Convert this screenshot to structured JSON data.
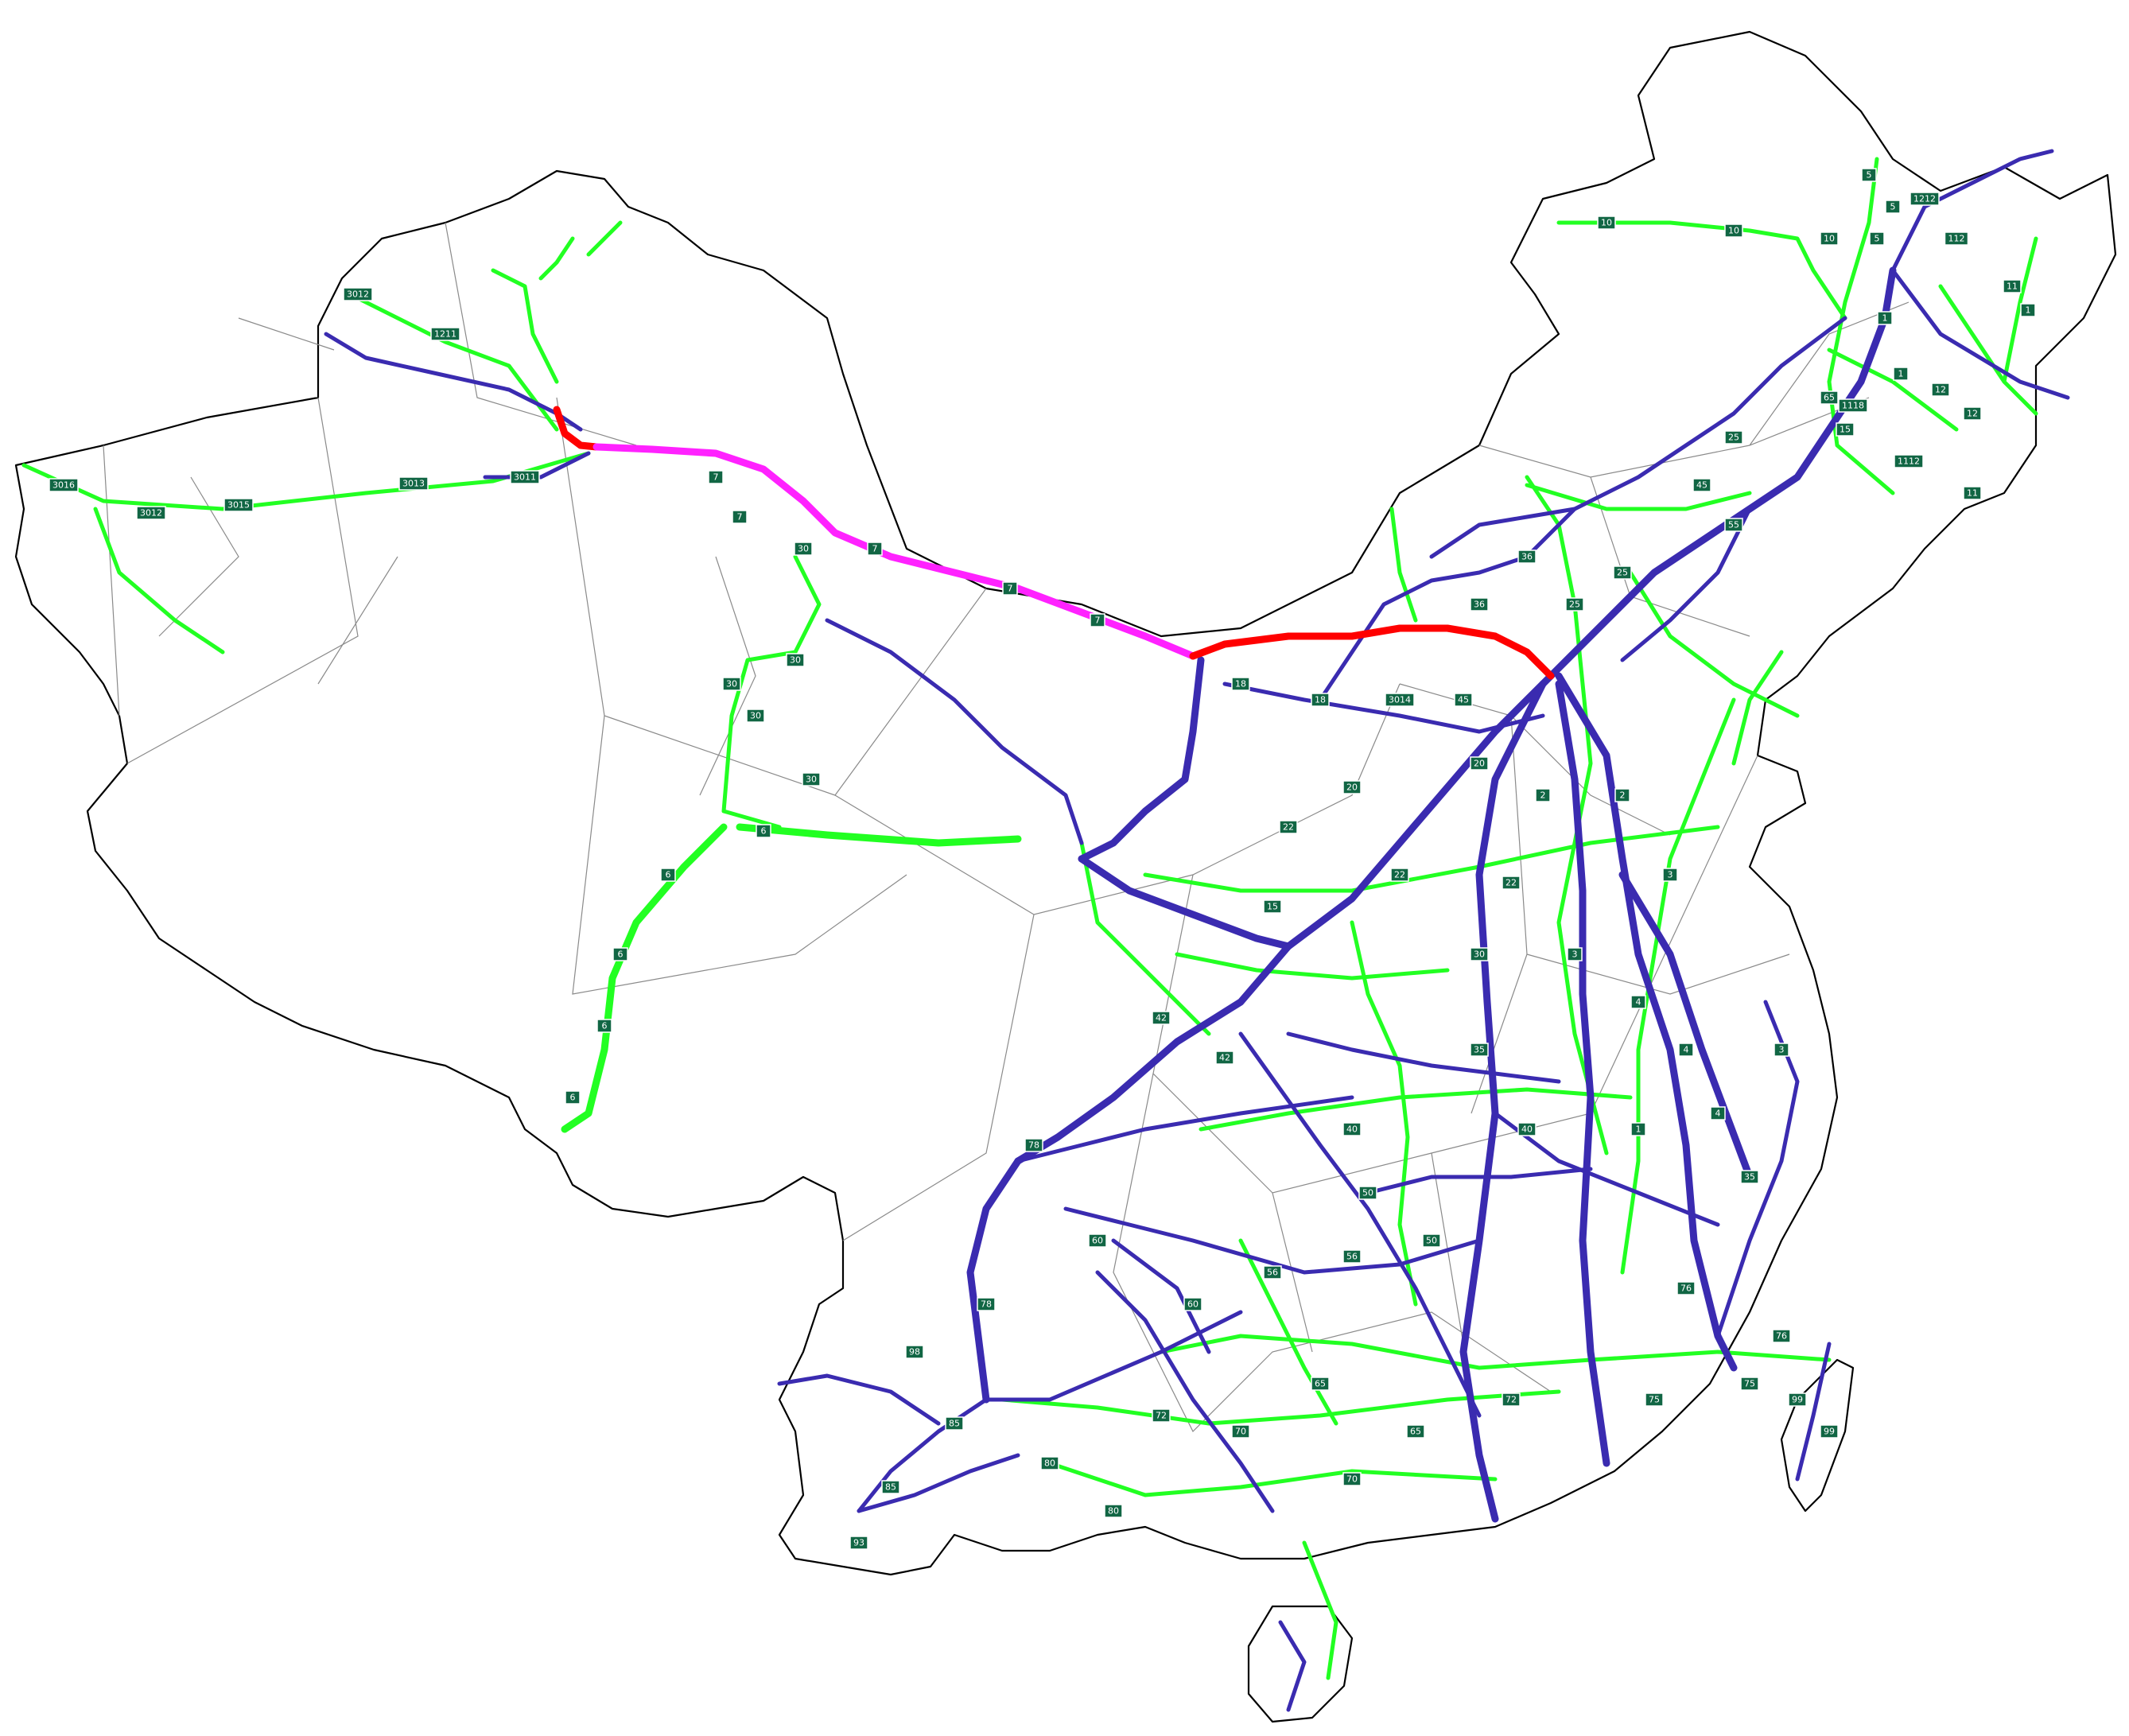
{
  "colors": {
    "planned_expressway": "#22ff22",
    "open_expressway": "#3a2bb0",
    "highlight_route_section_a": "#ff22ff",
    "highlight_route_section_b": "#ff0000",
    "route_shield": "#116644"
  },
  "route_labels": [
    "10",
    "10",
    "10",
    "11",
    "11",
    "1",
    "1",
    "15",
    "25",
    "45",
    "55",
    "65",
    "12",
    "12",
    "1",
    "5",
    "5",
    "5",
    "30",
    "30",
    "30",
    "30",
    "30",
    "6",
    "6",
    "6",
    "6",
    "6",
    "7",
    "7",
    "7",
    "7",
    "7",
    "18",
    "18",
    "18",
    "20",
    "20",
    "22",
    "22",
    "22",
    "2",
    "2",
    "3",
    "3",
    "4",
    "4",
    "4",
    "35",
    "35",
    "40",
    "40",
    "42",
    "42",
    "50",
    "50",
    "56",
    "56",
    "60",
    "60",
    "65",
    "65",
    "70",
    "70",
    "72",
    "72",
    "75",
    "75",
    "76",
    "76",
    "78",
    "78",
    "80",
    "80",
    "85",
    "85",
    "93",
    "98",
    "99",
    "99",
    "1",
    "3",
    "15",
    "25",
    "36",
    "45",
    "25",
    "36",
    "30",
    "3014",
    "3016",
    "3015",
    "3012",
    "3013",
    "3011",
    "3012",
    "1211",
    "1212",
    "112",
    "1118",
    "1112"
  ]
}
